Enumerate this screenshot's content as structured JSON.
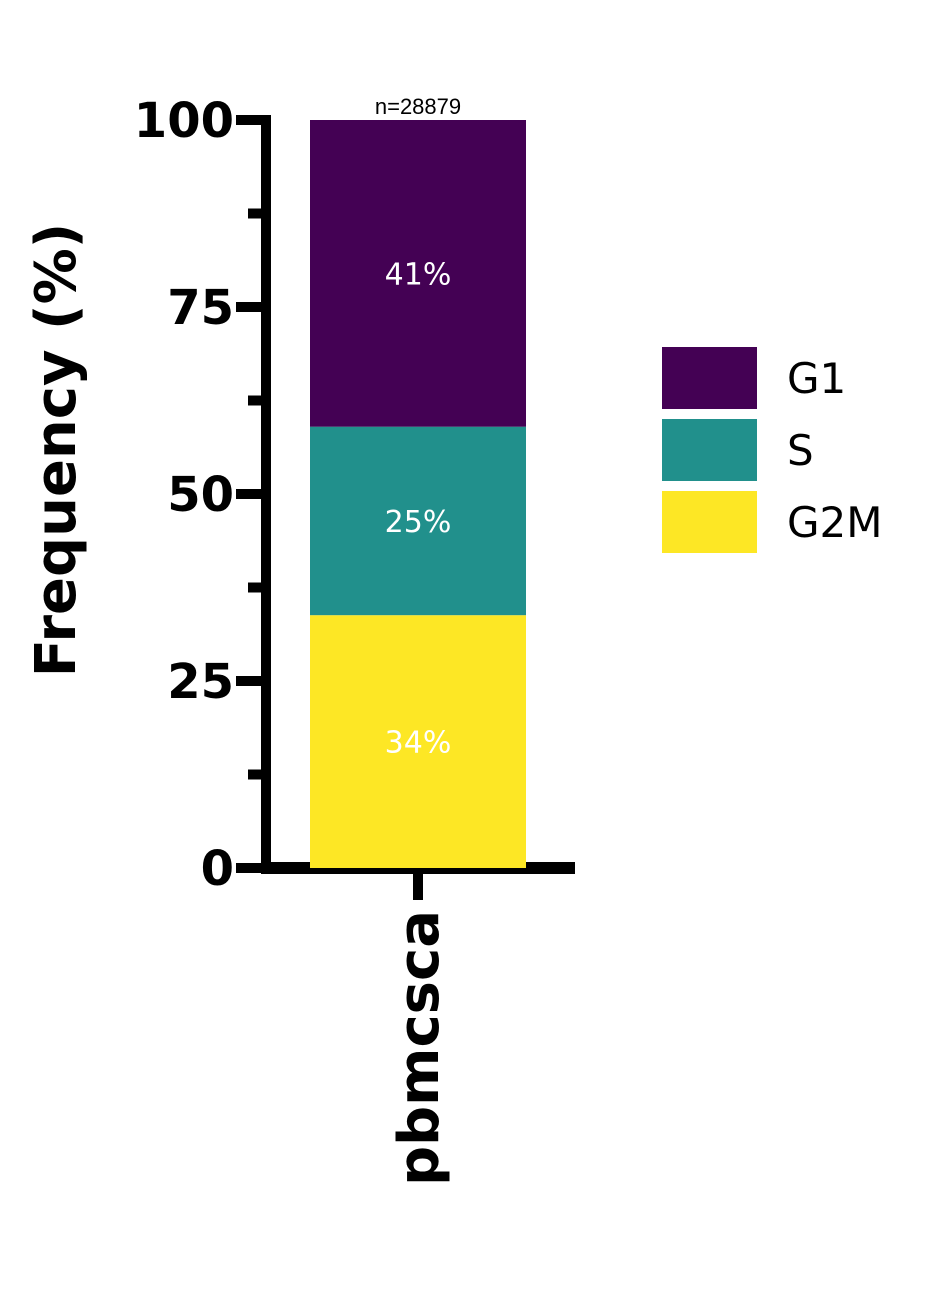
{
  "chart_data": {
    "type": "bar",
    "stacked": true,
    "categories": [
      "pbmcsca"
    ],
    "series": [
      {
        "name": "G2M",
        "values": [
          33.8
        ],
        "label": "34%",
        "color": "#FDE725"
      },
      {
        "name": "S",
        "values": [
          25.2
        ],
        "label": "25%",
        "color": "#21908C"
      },
      {
        "name": "G1",
        "values": [
          41.0
        ],
        "label": "41%",
        "color": "#440154"
      }
    ],
    "annotations": [
      "n=28879"
    ],
    "ylabel": "Frequency (%)",
    "xlabel": "",
    "ylim": [
      0,
      100
    ],
    "yticks": [
      "0",
      "25",
      "50",
      "75",
      "100"
    ],
    "grid": false,
    "legend": {
      "position": "right",
      "entries": [
        {
          "name": "G1",
          "color": "#440154"
        },
        {
          "name": "S",
          "color": "#21908C"
        },
        {
          "name": "G2M",
          "color": "#FDE725"
        }
      ]
    }
  }
}
